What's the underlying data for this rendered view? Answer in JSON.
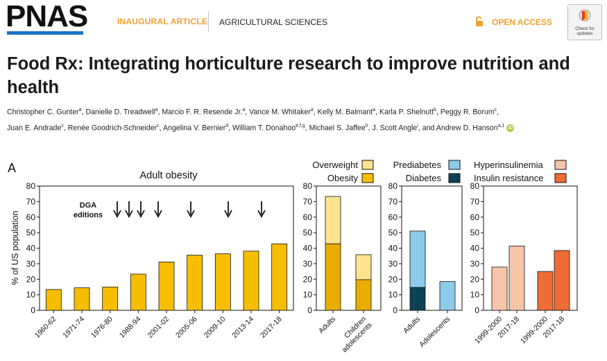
{
  "header": {
    "logo": "PNAS",
    "article_type": "INAUGURAL ARTICLE",
    "section": "AGRICULTURAL SCIENCES",
    "access": "OPEN ACCESS",
    "check_updates": [
      "Check for",
      "updates"
    ],
    "colors": {
      "accent": "#f0a030",
      "logo_bar": "#1a73c9"
    }
  },
  "article": {
    "title": "Food Rx: Integrating horticulture research to improve nutrition and health",
    "author_lines": [
      [
        {
          "name": "Christopher C. Gunter",
          "aff": "a"
        },
        {
          "name": "Danielle D. Treadwell",
          "aff": "a"
        },
        {
          "name": "Marcio F. R. Resende Jr.",
          "aff": "a"
        },
        {
          "name": "Vance M. Whitaker",
          "aff": "a"
        },
        {
          "name": "Kelly M. Balmant",
          "aff": "a"
        },
        {
          "name": "Karla P. Shelnutt",
          "aff": "b"
        },
        {
          "name": "Peggy R. Borum",
          "aff": "c"
        }
      ],
      [
        {
          "name": "Juan E. Andrade",
          "aff": "c"
        },
        {
          "name": "Renée Goodrich-Schneider",
          "aff": "c"
        },
        {
          "name": "Angelina V. Bernier",
          "aff": "d"
        },
        {
          "name": "William T. Donahoo",
          "aff": "e,f,g"
        },
        {
          "name": "Michael S. Jaffee",
          "aff": "h"
        },
        {
          "name": "J. Scott Angle",
          "aff": "i"
        },
        {
          "name": "Andrew D. Hanson",
          "aff": "a,1"
        }
      ]
    ],
    "orcid_label": "iD"
  },
  "figure": {
    "panel_label": "A",
    "colors": {
      "obesity": "#f7be00",
      "overweight": "#fde28f",
      "obesity_stack": "#e8ad00",
      "prediabetes": "#8ccbea",
      "diabetes": "#0d4158",
      "hyperinsulinemia": "#f6c5a8",
      "insulin_resistance": "#ee6c35"
    },
    "legends": {
      "p2": [
        {
          "label": "Overweight",
          "color": "#fde28f"
        },
        {
          "label": "Obesity",
          "color": "#f7be00"
        }
      ],
      "p3": [
        {
          "label": "Prediabetes",
          "color": "#8ccbea"
        },
        {
          "label": "Diabetes",
          "color": "#0d4158"
        }
      ],
      "p4": [
        {
          "label": "Hyperinsulinemia",
          "color": "#f6c5a8"
        },
        {
          "label": "Insulin resistance",
          "color": "#ee6c35"
        }
      ]
    },
    "dga_label": [
      "DGA",
      "editions"
    ]
  },
  "chart_data": [
    {
      "type": "bar",
      "title": "Adult obesity",
      "ylabel": "% of US population",
      "xlabel": "",
      "ylim": [
        0,
        80
      ],
      "yticks": [
        0,
        10,
        20,
        30,
        40,
        50,
        60,
        70,
        80
      ],
      "categories": [
        "1960-62",
        "1971-74",
        "1976-80",
        "1988-94",
        "2001-02",
        "2005-06",
        "2009-10",
        "2013-14",
        "2017-18"
      ],
      "values": [
        13.4,
        14.5,
        15.0,
        23.3,
        31.1,
        35.5,
        36.4,
        38.1,
        42.8
      ],
      "annotations": {
        "label": "DGA editions",
        "arrow_positions_year": [
          1980,
          1985,
          1990,
          1995,
          2000,
          2005,
          2010,
          2015
        ]
      }
    },
    {
      "type": "bar",
      "stacked": true,
      "ylim": [
        0,
        80
      ],
      "yticks": [
        0,
        10,
        20,
        30,
        40,
        50,
        60,
        70,
        80
      ],
      "categories": [
        "Adults",
        "Children adolescents"
      ],
      "series": [
        {
          "name": "Obesity",
          "values": [
            42.8,
            19.7
          ]
        },
        {
          "name": "Overweight",
          "values": [
            30.5,
            16.1
          ]
        }
      ]
    },
    {
      "type": "bar",
      "stacked": true,
      "ylim": [
        0,
        80
      ],
      "yticks": [
        0,
        10,
        20,
        30,
        40,
        50,
        60,
        70,
        80
      ],
      "categories": [
        "Adults",
        "Adolescents"
      ],
      "series": [
        {
          "name": "Diabetes",
          "values": [
            14.7,
            0
          ]
        },
        {
          "name": "Prediabetes",
          "values": [
            36.3,
            18.5
          ]
        }
      ]
    },
    {
      "type": "bar",
      "ylim": [
        0,
        80
      ],
      "yticks": [
        0,
        10,
        20,
        30,
        40,
        50,
        60,
        70,
        80
      ],
      "categories": [
        "1999-2000",
        "2017-18",
        "1999-2000",
        "2017-18"
      ],
      "series": [
        {
          "name": "Hyperinsulinemia",
          "values": [
            27.8,
            41.4,
            null,
            null
          ]
        },
        {
          "name": "Insulin resistance",
          "values": [
            null,
            null,
            25.0,
            38.5
          ]
        }
      ]
    }
  ]
}
